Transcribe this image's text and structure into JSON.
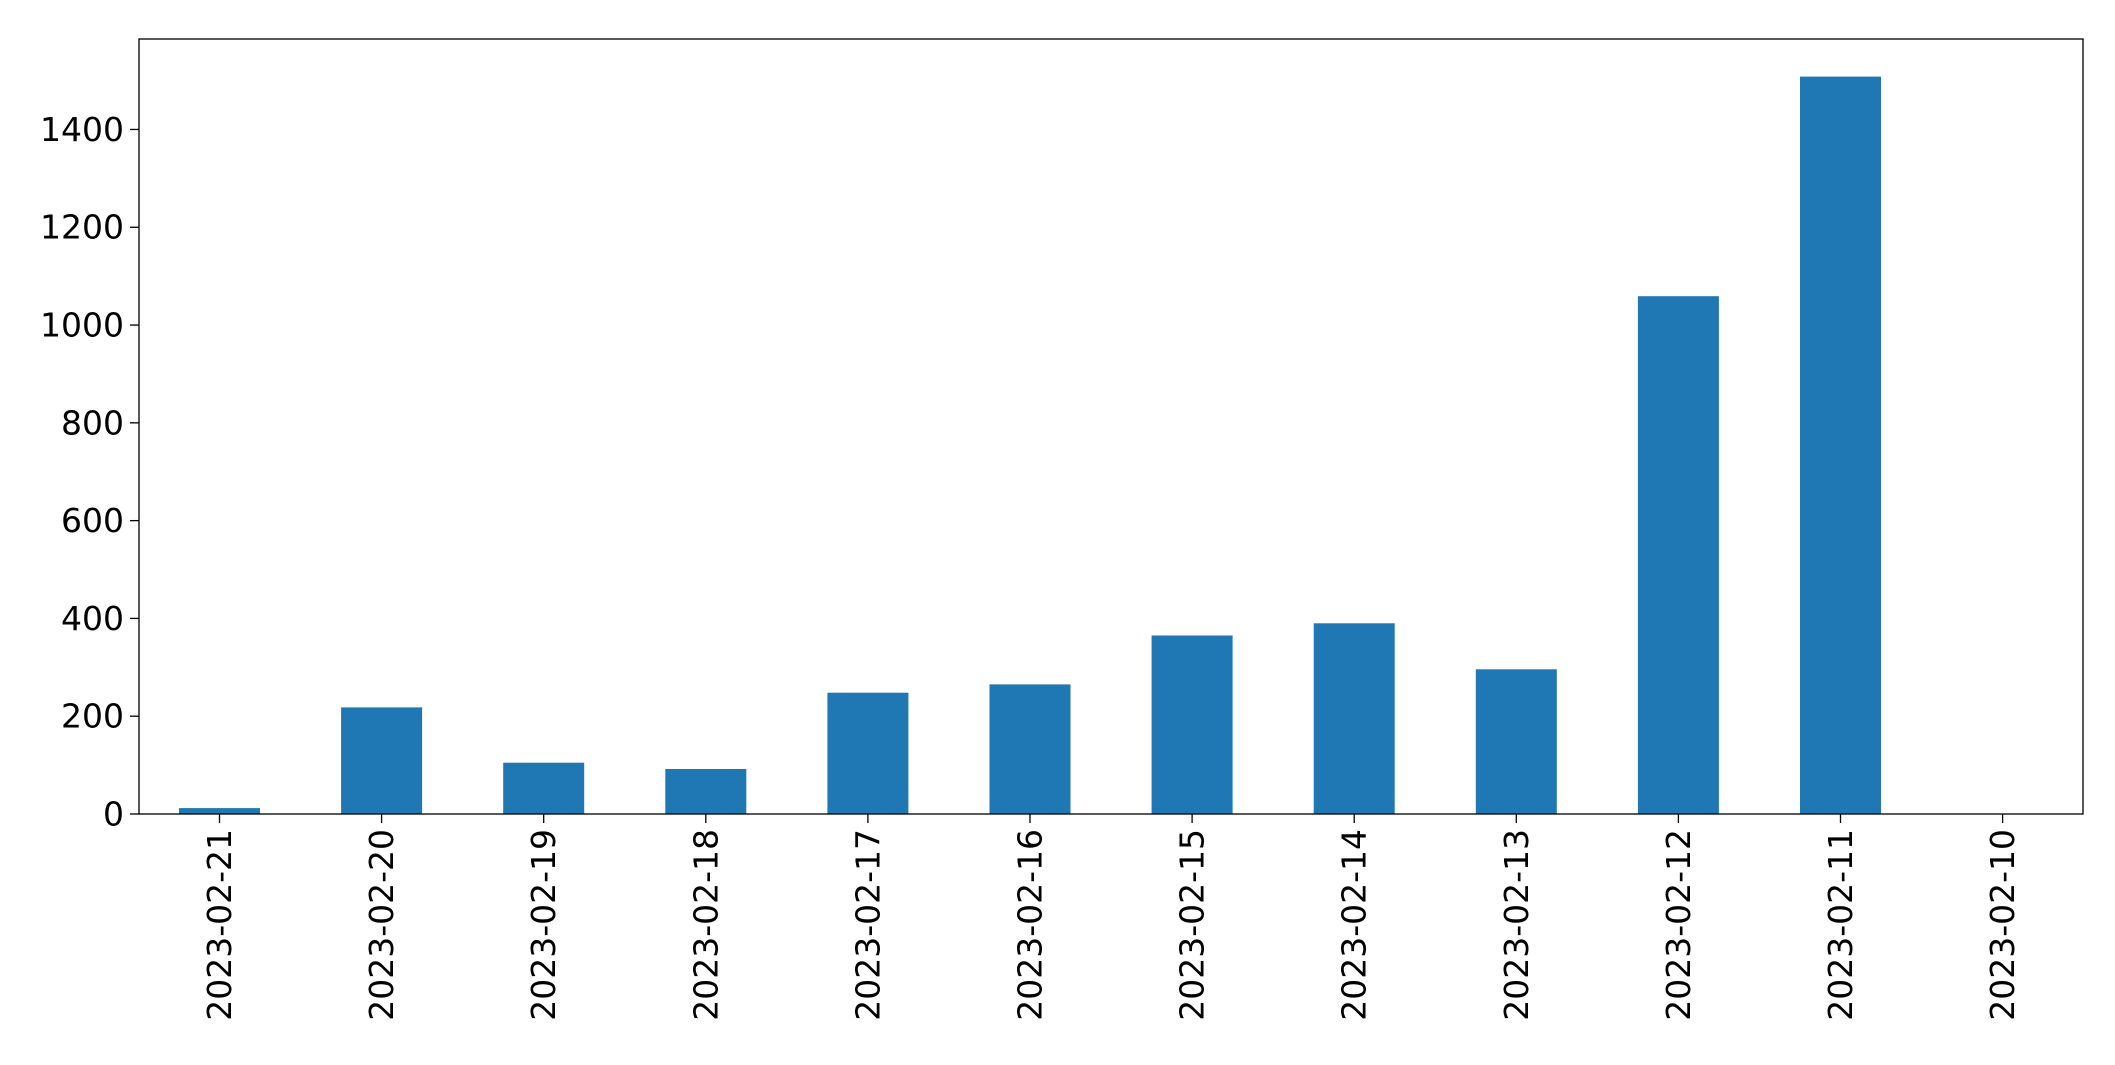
{
  "chart_data": {
    "type": "bar",
    "title": "",
    "xlabel": "",
    "ylabel": "",
    "categories": [
      "2023-02-21",
      "2023-02-20",
      "2023-02-19",
      "2023-02-18",
      "2023-02-17",
      "2023-02-16",
      "2023-02-15",
      "2023-02-14",
      "2023-02-13",
      "2023-02-12",
      "2023-02-11",
      "2023-02-10"
    ],
    "values": [
      12,
      218,
      105,
      92,
      248,
      265,
      365,
      390,
      296,
      1059,
      1508,
      0
    ],
    "ylim": [
      0,
      1585
    ],
    "yticks": [
      0,
      200,
      400,
      600,
      800,
      1000,
      1200,
      1400
    ],
    "ytick_labels": [
      "0",
      "200",
      "400",
      "600",
      "800",
      "1000",
      "1200",
      "1400"
    ],
    "grid": false,
    "legend": "none",
    "colors": {
      "bar": "#1f77b4",
      "axis": "#000000",
      "background": "#ffffff"
    }
  }
}
